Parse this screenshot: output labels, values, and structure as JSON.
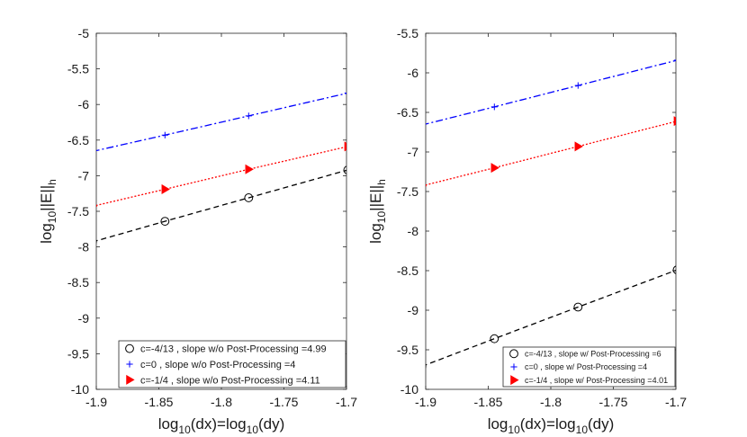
{
  "chart_data": [
    {
      "type": "line",
      "title": "",
      "xlabel": "log10(dx)=log10(dy)",
      "ylabel": "log10||E||h",
      "xlim": [
        -1.9,
        -1.7
      ],
      "ylim": [
        -10,
        -5
      ],
      "xticks": [
        -1.9,
        -1.85,
        -1.8,
        -1.75,
        -1.7
      ],
      "xtick_labels": [
        "-1.9",
        "-1.85",
        "-1.8",
        "-1.75",
        "-1.7"
      ],
      "yticks": [
        -10,
        -9.5,
        -9,
        -8.5,
        -8,
        -7.5,
        -7,
        -6.5,
        -6,
        -5.5,
        -5
      ],
      "ytick_labels": [
        "-10",
        "-9.5",
        "-9",
        "-8.5",
        "-8",
        "-7.5",
        "-7",
        "-6.5",
        "-6",
        "-5.5",
        "-5"
      ],
      "grid": false,
      "legend_position": "bottom-right",
      "series": [
        {
          "name": "c=-4/13 , slope w/o Post-Processing =4.99",
          "color": "#000000",
          "linestyle": "dashed",
          "marker": "circle",
          "x": [
            -1.9031,
            -1.8451,
            -1.7782,
            -1.699
          ],
          "y": [
            -7.93,
            -7.64,
            -7.31,
            -6.92
          ]
        },
        {
          "name": "c=0 , slope w/o Post-Processing =4",
          "color": "#0000ff",
          "linestyle": "dashdot",
          "marker": "plus",
          "x": [
            -1.9031,
            -1.8451,
            -1.7782,
            -1.699
          ],
          "y": [
            -6.66,
            -6.43,
            -6.16,
            -5.84
          ]
        },
        {
          "name": "c=-1/4 , slope w/o Post-Processing =4.11",
          "color": "#ff0000",
          "linestyle": "dotted",
          "marker": "triangle-right",
          "x": [
            -1.9031,
            -1.8451,
            -1.7782,
            -1.699
          ],
          "y": [
            -7.43,
            -7.19,
            -6.91,
            -6.59
          ]
        }
      ]
    },
    {
      "type": "line",
      "title": "",
      "xlabel": "log10(dx)=log10(dy)",
      "ylabel": "log10||E||h",
      "xlim": [
        -1.9,
        -1.7
      ],
      "ylim": [
        -10,
        -5.5
      ],
      "xticks": [
        -1.9,
        -1.85,
        -1.8,
        -1.75,
        -1.7
      ],
      "xtick_labels": [
        "-1.9",
        "-1.85",
        "-1.8",
        "-1.75",
        "-1.7"
      ],
      "yticks": [
        -10,
        -9.5,
        -9,
        -8.5,
        -8,
        -7.5,
        -7,
        -6.5,
        -6,
        -5.5
      ],
      "ytick_labels": [
        "-10",
        "-9.5",
        "-9",
        "-8.5",
        "-8",
        "-7.5",
        "-7",
        "-6.5",
        "-6",
        "-5.5"
      ],
      "grid": false,
      "legend_position": "bottom-right",
      "series": [
        {
          "name": "c=-4/13 , slope w/ Post-Processing =6",
          "color": "#000000",
          "linestyle": "dashed",
          "marker": "circle",
          "x": [
            -1.9031,
            -1.8451,
            -1.7782,
            -1.699
          ],
          "y": [
            -9.71,
            -9.36,
            -8.96,
            -8.49
          ]
        },
        {
          "name": "c=0 , slope w/ Post-Processing =4",
          "color": "#0000ff",
          "linestyle": "dashdot",
          "marker": "plus",
          "x": [
            -1.9031,
            -1.8451,
            -1.7782,
            -1.699
          ],
          "y": [
            -6.66,
            -6.43,
            -6.16,
            -5.84
          ]
        },
        {
          "name": "c=-1/4 , slope w/ Post-Processing =4.01",
          "color": "#ff0000",
          "linestyle": "dotted",
          "marker": "triangle-right",
          "x": [
            -1.9031,
            -1.8451,
            -1.7782,
            -1.699
          ],
          "y": [
            -7.43,
            -7.2,
            -6.93,
            -6.61
          ]
        }
      ]
    }
  ]
}
